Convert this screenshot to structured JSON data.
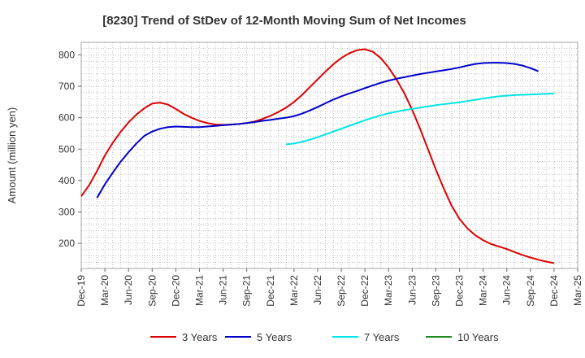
{
  "chart_data": {
    "type": "line",
    "title": "[8230]  Trend of StDev of 12-Month Moving Sum of Net Incomes",
    "xlabel": "",
    "ylabel": "Amount (million yen)",
    "ylim": [
      120,
      840
    ],
    "yticks": [
      200,
      300,
      400,
      500,
      600,
      700,
      800
    ],
    "xticks": [
      "Dec-19",
      "Mar-20",
      "Jun-20",
      "Sep-20",
      "Dec-20",
      "Mar-21",
      "Jun-21",
      "Sep-21",
      "Dec-21",
      "Mar-22",
      "Jun-22",
      "Sep-22",
      "Dec-22",
      "Mar-23",
      "Jun-23",
      "Sep-23",
      "Dec-23",
      "Mar-24",
      "Jun-24",
      "Sep-24",
      "Dec-24",
      "Mar-25"
    ],
    "grid": true,
    "legend_position": "bottom",
    "series": [
      {
        "name": "3 Years",
        "color": "#dd0000",
        "points": [
          [
            "Dec-19",
            350
          ],
          [
            "Jan-20",
            385
          ],
          [
            "Feb-20",
            430
          ],
          [
            "Mar-20",
            480
          ],
          [
            "Apr-20",
            520
          ],
          [
            "May-20",
            555
          ],
          [
            "Jun-20",
            585
          ],
          [
            "Jul-20",
            610
          ],
          [
            "Aug-20",
            630
          ],
          [
            "Sep-20",
            645
          ],
          [
            "Oct-20",
            648
          ],
          [
            "Nov-20",
            642
          ],
          [
            "Dec-20",
            628
          ],
          [
            "Jan-21",
            612
          ],
          [
            "Feb-21",
            600
          ],
          [
            "Mar-21",
            590
          ],
          [
            "Apr-21",
            583
          ],
          [
            "May-21",
            578
          ],
          [
            "Jun-21",
            577
          ],
          [
            "Jul-21",
            578
          ],
          [
            "Aug-21",
            580
          ],
          [
            "Sep-21",
            583
          ],
          [
            "Oct-21",
            588
          ],
          [
            "Nov-21",
            596
          ],
          [
            "Dec-21",
            606
          ],
          [
            "Jan-22",
            618
          ],
          [
            "Feb-22",
            632
          ],
          [
            "Mar-22",
            650
          ],
          [
            "Apr-22",
            672
          ],
          [
            "May-22",
            697
          ],
          [
            "Jun-22",
            722
          ],
          [
            "Jul-22",
            747
          ],
          [
            "Aug-22",
            770
          ],
          [
            "Sep-22",
            790
          ],
          [
            "Oct-22",
            805
          ],
          [
            "Nov-22",
            815
          ],
          [
            "Dec-22",
            818
          ],
          [
            "Jan-23",
            810
          ],
          [
            "Feb-23",
            790
          ],
          [
            "Mar-23",
            760
          ],
          [
            "Apr-23",
            722
          ],
          [
            "May-23",
            678
          ],
          [
            "Jun-23",
            625
          ],
          [
            "Jul-23",
            565
          ],
          [
            "Aug-23",
            500
          ],
          [
            "Sep-23",
            435
          ],
          [
            "Oct-23",
            375
          ],
          [
            "Nov-23",
            320
          ],
          [
            "Dec-23",
            278
          ],
          [
            "Jan-24",
            248
          ],
          [
            "Feb-24",
            226
          ],
          [
            "Mar-24",
            210
          ],
          [
            "Apr-24",
            198
          ],
          [
            "May-24",
            190
          ],
          [
            "Jun-24",
            182
          ],
          [
            "Jul-24",
            172
          ],
          [
            "Aug-24",
            163
          ],
          [
            "Sep-24",
            155
          ],
          [
            "Oct-24",
            148
          ],
          [
            "Nov-24",
            142
          ],
          [
            "Dec-24",
            137
          ]
        ]
      },
      {
        "name": "5 Years",
        "color": "#0000cc",
        "points": [
          [
            "Feb-20",
            345
          ],
          [
            "Mar-20",
            388
          ],
          [
            "Apr-20",
            425
          ],
          [
            "May-20",
            460
          ],
          [
            "Jun-20",
            490
          ],
          [
            "Jul-20",
            518
          ],
          [
            "Aug-20",
            542
          ],
          [
            "Sep-20",
            556
          ],
          [
            "Oct-20",
            565
          ],
          [
            "Nov-20",
            570
          ],
          [
            "Dec-20",
            572
          ],
          [
            "Jan-21",
            571
          ],
          [
            "Feb-21",
            570
          ],
          [
            "Mar-21",
            570
          ],
          [
            "Apr-21",
            572
          ],
          [
            "May-21",
            574
          ],
          [
            "Jun-21",
            576
          ],
          [
            "Jul-21",
            578
          ],
          [
            "Aug-21",
            580
          ],
          [
            "Sep-21",
            583
          ],
          [
            "Oct-21",
            586
          ],
          [
            "Nov-21",
            590
          ],
          [
            "Dec-21",
            593
          ],
          [
            "Jan-22",
            597
          ],
          [
            "Feb-22",
            600
          ],
          [
            "Mar-22",
            605
          ],
          [
            "Apr-22",
            613
          ],
          [
            "May-22",
            623
          ],
          [
            "Jun-22",
            634
          ],
          [
            "Jul-22",
            646
          ],
          [
            "Aug-22",
            658
          ],
          [
            "Sep-22",
            668
          ],
          [
            "Oct-22",
            677
          ],
          [
            "Nov-22",
            685
          ],
          [
            "Dec-22",
            694
          ],
          [
            "Jan-23",
            703
          ],
          [
            "Feb-23",
            711
          ],
          [
            "Mar-23",
            718
          ],
          [
            "Apr-23",
            724
          ],
          [
            "May-23",
            729
          ],
          [
            "Jun-23",
            734
          ],
          [
            "Jul-23",
            739
          ],
          [
            "Aug-23",
            743
          ],
          [
            "Sep-23",
            747
          ],
          [
            "Oct-23",
            751
          ],
          [
            "Nov-23",
            755
          ],
          [
            "Dec-23",
            760
          ],
          [
            "Jan-24",
            766
          ],
          [
            "Feb-24",
            771
          ],
          [
            "Mar-24",
            774
          ],
          [
            "Apr-24",
            775
          ],
          [
            "May-24",
            775
          ],
          [
            "Jun-24",
            774
          ],
          [
            "Jul-24",
            771
          ],
          [
            "Aug-24",
            766
          ],
          [
            "Sep-24",
            758
          ],
          [
            "Oct-24",
            748
          ]
        ]
      },
      {
        "name": "7 Years",
        "color": "#00e5e5",
        "points": [
          [
            "Feb-22",
            515
          ],
          [
            "Mar-22",
            518
          ],
          [
            "Apr-22",
            523
          ],
          [
            "May-22",
            530
          ],
          [
            "Jun-22",
            538
          ],
          [
            "Jul-22",
            547
          ],
          [
            "Aug-22",
            556
          ],
          [
            "Sep-22",
            565
          ],
          [
            "Oct-22",
            574
          ],
          [
            "Nov-22",
            583
          ],
          [
            "Dec-22",
            592
          ],
          [
            "Jan-23",
            600
          ],
          [
            "Feb-23",
            607
          ],
          [
            "Mar-23",
            614
          ],
          [
            "Apr-23",
            619
          ],
          [
            "May-23",
            624
          ],
          [
            "Jun-23",
            628
          ],
          [
            "Jul-23",
            632
          ],
          [
            "Aug-23",
            636
          ],
          [
            "Sep-23",
            640
          ],
          [
            "Oct-23",
            643
          ],
          [
            "Nov-23",
            646
          ],
          [
            "Dec-23",
            649
          ],
          [
            "Jan-24",
            653
          ],
          [
            "Feb-24",
            657
          ],
          [
            "Mar-24",
            661
          ],
          [
            "Apr-24",
            665
          ],
          [
            "May-24",
            668
          ],
          [
            "Jun-24",
            670
          ],
          [
            "Jul-24",
            672
          ],
          [
            "Aug-24",
            673
          ],
          [
            "Sep-24",
            674
          ],
          [
            "Oct-24",
            675
          ],
          [
            "Nov-24",
            676
          ],
          [
            "Dec-24",
            677
          ]
        ]
      },
      {
        "name": "10 Years",
        "color": "#228b22",
        "points": []
      }
    ]
  }
}
